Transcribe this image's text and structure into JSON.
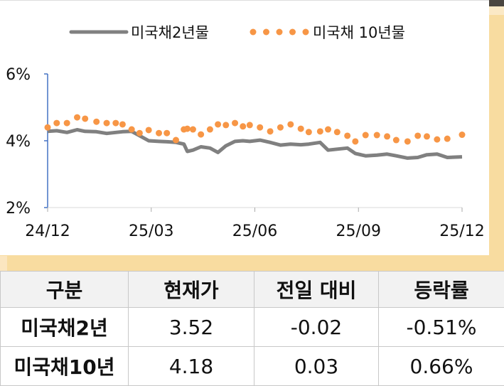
{
  "chart_data": {
    "type": "line",
    "ylim": [
      2,
      6
    ],
    "yticks": [
      "2%",
      "4%",
      "6%"
    ],
    "xticks": [
      "24/12",
      "25/03",
      "25/06",
      "25/09",
      "25/12"
    ],
    "grid": false,
    "legend_position": "top",
    "series": [
      {
        "name": "미국채2년물",
        "style": "line",
        "color": "#808080",
        "x": [
          "2024-12-01",
          "2024-12-09",
          "2024-12-18",
          "2024-12-27",
          "2025-01-03",
          "2025-01-13",
          "2025-01-22",
          "2025-01-30",
          "2025-02-05",
          "2025-02-13",
          "2025-02-20",
          "2025-02-28",
          "2025-03-09",
          "2025-03-16",
          "2025-03-24",
          "2025-03-31",
          "2025-04-03",
          "2025-04-08",
          "2025-04-15",
          "2025-04-23",
          "2025-04-30",
          "2025-05-07",
          "2025-05-15",
          "2025-05-22",
          "2025-05-28",
          "2025-06-06",
          "2025-06-15",
          "2025-06-24",
          "2025-07-03",
          "2025-07-12",
          "2025-07-19",
          "2025-07-29",
          "2025-08-05",
          "2025-08-13",
          "2025-08-22",
          "2025-08-29",
          "2025-09-07",
          "2025-09-17",
          "2025-09-26",
          "2025-10-04",
          "2025-10-14",
          "2025-10-23",
          "2025-10-31",
          "2025-11-09",
          "2025-11-18",
          "2025-12-01"
        ],
        "values": [
          4.28,
          4.3,
          4.25,
          4.33,
          4.28,
          4.27,
          4.22,
          4.25,
          4.27,
          4.28,
          4.15,
          4.0,
          3.98,
          3.97,
          3.95,
          3.9,
          3.68,
          3.72,
          3.82,
          3.78,
          3.65,
          3.85,
          3.98,
          4.0,
          3.98,
          4.02,
          3.95,
          3.87,
          3.9,
          3.88,
          3.9,
          3.95,
          3.72,
          3.75,
          3.78,
          3.62,
          3.55,
          3.57,
          3.6,
          3.55,
          3.48,
          3.5,
          3.58,
          3.6,
          3.5,
          3.52
        ]
      },
      {
        "name": "미국채 10년물",
        "style": "dots",
        "color": "#f79646",
        "x": [
          "2024-12-01",
          "2024-12-09",
          "2024-12-18",
          "2024-12-27",
          "2025-01-03",
          "2025-01-13",
          "2025-01-22",
          "2025-01-30",
          "2025-02-05",
          "2025-02-13",
          "2025-02-20",
          "2025-02-28",
          "2025-03-09",
          "2025-03-16",
          "2025-03-24",
          "2025-03-31",
          "2025-04-03",
          "2025-04-08",
          "2025-04-15",
          "2025-04-23",
          "2025-04-30",
          "2025-05-07",
          "2025-05-15",
          "2025-05-22",
          "2025-05-28",
          "2025-06-06",
          "2025-06-15",
          "2025-06-24",
          "2025-07-03",
          "2025-07-12",
          "2025-07-19",
          "2025-07-29",
          "2025-08-05",
          "2025-08-13",
          "2025-08-22",
          "2025-08-29",
          "2025-09-07",
          "2025-09-17",
          "2025-09-26",
          "2025-10-04",
          "2025-10-14",
          "2025-10-23",
          "2025-10-31",
          "2025-11-09",
          "2025-11-18",
          "2025-12-01"
        ],
        "values": [
          4.4,
          4.53,
          4.53,
          4.7,
          4.66,
          4.57,
          4.53,
          4.53,
          4.49,
          4.34,
          4.23,
          4.32,
          4.23,
          4.23,
          4.02,
          4.34,
          4.36,
          4.34,
          4.19,
          4.34,
          4.49,
          4.47,
          4.53,
          4.43,
          4.47,
          4.4,
          4.28,
          4.4,
          4.49,
          4.36,
          4.26,
          4.28,
          4.34,
          4.26,
          4.15,
          3.98,
          4.17,
          4.17,
          4.13,
          4.02,
          3.98,
          4.15,
          4.13,
          4.04,
          4.06,
          4.18
        ]
      }
    ]
  },
  "table": {
    "headers": [
      "구분",
      "현재가",
      "전일 대비",
      "등락률"
    ],
    "rows": [
      [
        "미국채2년",
        "3.52",
        "-0.02",
        "-0.51%"
      ],
      [
        "미국채10년",
        "4.18",
        "0.03",
        "0.66%"
      ]
    ]
  }
}
